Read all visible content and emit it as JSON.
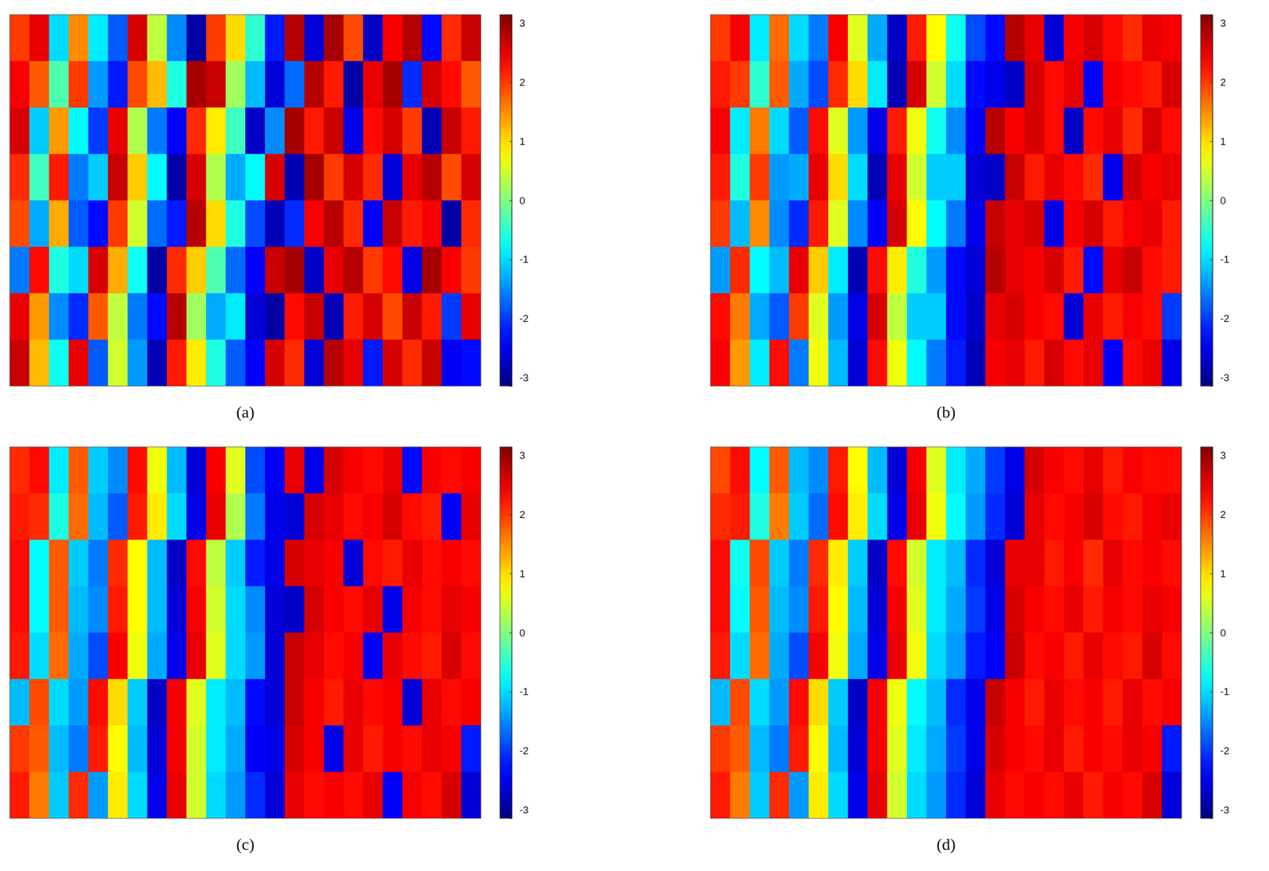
{
  "chart_data": [
    {
      "type": "heatmap",
      "title": "(a)",
      "cells": [
        [
          2.0,
          2.5,
          -1.0,
          1.5,
          -0.9,
          -1.8,
          2.6,
          0.4,
          -1.5,
          -2.9,
          2.0,
          1.0,
          -0.5,
          -2.2,
          2.8,
          -2.6,
          2.9,
          1.9,
          -2.7,
          2.4,
          2.8,
          -2.3,
          2.1,
          2.7
        ],
        [
          2.4,
          1.8,
          -0.3,
          2.0,
          -1.4,
          -2.2,
          1.9,
          1.2,
          -0.6,
          2.9,
          2.7,
          0.2,
          -1.2,
          -2.6,
          -1.7,
          2.8,
          2.2,
          -2.9,
          2.5,
          2.9,
          -2.1,
          2.6,
          2.3,
          1.8
        ],
        [
          2.6,
          -1.1,
          1.4,
          -0.8,
          -2.0,
          2.5,
          0.3,
          -1.6,
          -2.4,
          2.1,
          0.9,
          -0.4,
          -2.7,
          -1.5,
          2.9,
          2.2,
          2.7,
          -2.5,
          2.3,
          2.6,
          2.0,
          -2.8,
          2.7,
          2.2
        ],
        [
          2.1,
          -0.4,
          2.2,
          -1.6,
          -1.1,
          2.7,
          1.1,
          -0.8,
          -2.9,
          2.6,
          0.3,
          -1.3,
          -0.8,
          2.6,
          -2.8,
          2.9,
          2.0,
          2.6,
          2.1,
          -2.6,
          2.5,
          2.8,
          1.9,
          2.6
        ],
        [
          1.9,
          -1.3,
          1.3,
          -1.8,
          -2.3,
          2.0,
          0.5,
          -1.7,
          -2.2,
          2.8,
          1.0,
          -0.6,
          -1.9,
          -2.8,
          -2.1,
          2.4,
          2.8,
          2.1,
          -2.4,
          2.7,
          2.2,
          2.4,
          -2.9,
          2.1
        ],
        [
          -1.6,
          2.3,
          -0.6,
          -1.0,
          2.6,
          1.3,
          -0.7,
          -2.9,
          2.1,
          1.1,
          -0.3,
          -1.7,
          -2.4,
          2.7,
          2.9,
          -2.7,
          2.5,
          2.8,
          2.0,
          2.3,
          -2.5,
          2.9,
          2.4,
          2.0
        ],
        [
          2.5,
          1.4,
          -1.5,
          -2.1,
          1.8,
          0.4,
          -1.6,
          -2.3,
          2.8,
          0.2,
          -1.3,
          -0.9,
          -2.6,
          -2.9,
          2.3,
          2.7,
          -2.8,
          2.2,
          2.6,
          1.9,
          2.7,
          2.2,
          -2.0,
          2.5
        ],
        [
          2.7,
          1.2,
          -0.7,
          2.5,
          -1.8,
          0.5,
          -1.4,
          -2.8,
          2.2,
          0.9,
          -0.6,
          -1.8,
          -2.4,
          2.6,
          2.1,
          -2.6,
          2.8,
          2.5,
          -2.2,
          2.6,
          2.1,
          2.7,
          -2.4,
          -2.3
        ]
      ],
      "colorbar": {
        "range": [
          -3.1416,
          3.1416
        ],
        "ticks": [
          -3,
          -2,
          -1,
          0,
          1,
          2,
          3
        ]
      }
    },
    {
      "type": "heatmap",
      "title": "(b)",
      "cells": [
        [
          2.0,
          2.4,
          -0.9,
          1.7,
          -1.0,
          -1.6,
          2.4,
          0.6,
          -1.3,
          -2.7,
          2.2,
          0.8,
          -0.7,
          -1.9,
          -2.3,
          2.8,
          2.5,
          -2.6,
          2.4,
          2.6,
          2.3,
          2.1,
          2.5,
          2.4
        ],
        [
          2.2,
          2.0,
          -0.5,
          1.8,
          -1.3,
          -1.9,
          2.1,
          1.0,
          -0.9,
          -2.8,
          2.6,
          0.5,
          -1.0,
          -2.3,
          -2.5,
          -2.7,
          2.6,
          2.3,
          2.5,
          -2.4,
          2.4,
          2.3,
          2.2,
          2.6
        ],
        [
          2.4,
          -0.9,
          1.6,
          -1.0,
          -1.8,
          2.3,
          0.6,
          -1.4,
          -2.5,
          2.2,
          0.7,
          -0.7,
          -1.5,
          -2.4,
          2.8,
          2.4,
          2.6,
          2.3,
          -2.7,
          2.3,
          2.5,
          2.1,
          2.6,
          2.3
        ],
        [
          2.2,
          -0.6,
          2.0,
          -1.4,
          -1.3,
          2.5,
          1.0,
          -1.0,
          -2.8,
          2.5,
          0.5,
          -1.1,
          -1.1,
          -2.6,
          -2.7,
          2.7,
          2.2,
          2.5,
          2.3,
          2.1,
          -2.5,
          2.6,
          2.4,
          2.5
        ],
        [
          2.0,
          -1.2,
          1.5,
          -1.5,
          -2.1,
          2.2,
          0.6,
          -1.5,
          -2.4,
          2.6,
          0.8,
          -0.8,
          -1.6,
          -2.5,
          2.7,
          2.5,
          2.6,
          -2.5,
          2.4,
          2.6,
          2.2,
          2.4,
          2.5,
          2.2
        ],
        [
          -1.4,
          2.1,
          -0.8,
          -1.2,
          2.5,
          1.1,
          -0.9,
          -2.8,
          2.3,
          0.9,
          -0.6,
          -1.4,
          -2.3,
          -2.6,
          2.8,
          2.5,
          2.4,
          2.6,
          2.2,
          -2.3,
          2.5,
          2.7,
          2.3,
          2.2
        ],
        [
          2.3,
          1.6,
          -1.3,
          -1.8,
          2.0,
          0.6,
          -1.4,
          -2.5,
          2.6,
          0.4,
          -1.1,
          -1.1,
          -2.3,
          -2.7,
          2.5,
          2.6,
          2.4,
          2.3,
          -2.6,
          2.5,
          2.2,
          2.4,
          2.3,
          -2.0
        ],
        [
          2.4,
          1.4,
          -0.9,
          2.3,
          -1.6,
          0.7,
          -1.2,
          -2.6,
          2.3,
          0.7,
          -0.8,
          -1.6,
          -2.2,
          -2.8,
          2.4,
          2.5,
          2.2,
          2.6,
          2.3,
          2.5,
          -2.4,
          2.3,
          2.5,
          -2.5
        ]
      ],
      "colorbar": {
        "range": [
          -3.1416,
          3.1416
        ],
        "ticks": [
          -3,
          -2,
          -1,
          0,
          1,
          2,
          3
        ]
      }
    },
    {
      "type": "heatmap",
      "title": "(c)",
      "cells": [
        [
          2.1,
          2.3,
          -0.9,
          1.8,
          -1.1,
          -1.5,
          2.3,
          0.7,
          -1.2,
          -2.6,
          2.4,
          0.6,
          -1.9,
          -2.4,
          2.5,
          -2.5,
          2.6,
          2.4,
          2.3,
          2.5,
          -2.3,
          2.4,
          2.3,
          2.4
        ],
        [
          2.2,
          2.1,
          -0.6,
          1.7,
          -1.2,
          -1.8,
          2.2,
          0.9,
          -1.0,
          -2.5,
          2.5,
          0.3,
          -1.6,
          -2.5,
          -2.6,
          2.6,
          2.5,
          2.3,
          2.4,
          2.6,
          2.3,
          2.2,
          -2.4,
          2.5
        ],
        [
          2.3,
          -0.8,
          1.8,
          -1.1,
          -1.6,
          2.1,
          0.8,
          -1.2,
          -2.7,
          2.3,
          0.4,
          -1.1,
          -2.2,
          -2.5,
          2.6,
          2.5,
          2.4,
          -2.6,
          2.3,
          2.2,
          2.5,
          2.3,
          2.4,
          2.3
        ],
        [
          2.3,
          -0.8,
          1.8,
          -1.2,
          -1.5,
          2.2,
          0.8,
          -1.2,
          -2.6,
          2.4,
          0.5,
          -1.0,
          -1.5,
          -2.6,
          -2.7,
          2.6,
          2.4,
          2.3,
          2.5,
          -2.5,
          2.4,
          2.3,
          2.5,
          2.4
        ],
        [
          2.2,
          -1.0,
          1.7,
          -1.3,
          -1.9,
          2.4,
          0.7,
          -1.3,
          -2.5,
          2.5,
          0.6,
          -1.0,
          -1.4,
          -2.6,
          2.7,
          2.5,
          2.3,
          2.4,
          -2.4,
          2.5,
          2.3,
          2.2,
          2.6,
          2.3
        ],
        [
          -1.2,
          1.9,
          -1.0,
          -1.4,
          2.3,
          1.0,
          -1.1,
          -2.7,
          2.4,
          0.6,
          -0.9,
          -1.2,
          -2.3,
          -2.6,
          2.7,
          2.4,
          2.2,
          2.5,
          2.3,
          2.4,
          -2.6,
          2.5,
          2.3,
          2.4
        ],
        [
          2.0,
          1.8,
          -1.2,
          -1.6,
          2.2,
          0.8,
          -1.2,
          -2.6,
          2.4,
          0.5,
          -0.9,
          -1.3,
          -2.4,
          -2.5,
          2.6,
          2.4,
          -2.5,
          2.5,
          2.2,
          2.4,
          2.3,
          2.5,
          2.4,
          -2.2
        ],
        [
          2.2,
          1.6,
          -1.1,
          2.1,
          -1.4,
          0.9,
          -1.0,
          -2.5,
          2.5,
          0.5,
          -1.0,
          -1.4,
          -2.1,
          -2.6,
          2.5,
          2.3,
          2.4,
          2.3,
          2.5,
          -2.4,
          2.4,
          2.3,
          2.6,
          -2.6
        ]
      ],
      "colorbar": {
        "range": [
          -3.1416,
          3.1416
        ],
        "ticks": [
          -3,
          -2,
          -1,
          0,
          1,
          2,
          3
        ]
      }
    },
    {
      "type": "heatmap",
      "title": "(d)",
      "cells": [
        [
          1.9,
          2.3,
          -0.8,
          1.8,
          -1.2,
          -1.5,
          2.2,
          0.8,
          -1.2,
          -2.6,
          2.4,
          0.6,
          -0.9,
          -1.3,
          -2.0,
          -2.5,
          2.6,
          2.4,
          2.3,
          2.5,
          2.2,
          2.4,
          2.3,
          2.3
        ],
        [
          2.1,
          2.2,
          -0.6,
          1.6,
          -1.1,
          -1.7,
          2.3,
          0.9,
          -1.0,
          -2.5,
          2.5,
          0.7,
          -0.8,
          -1.4,
          -2.1,
          -2.6,
          2.5,
          2.3,
          2.4,
          2.6,
          2.3,
          2.2,
          2.4,
          2.5
        ],
        [
          2.3,
          -0.7,
          1.9,
          -1.1,
          -1.6,
          2.1,
          0.9,
          -1.1,
          -2.7,
          2.3,
          0.5,
          -0.9,
          -1.2,
          -2.1,
          -2.6,
          2.5,
          2.5,
          2.2,
          2.4,
          2.1,
          2.5,
          2.3,
          2.4,
          2.3
        ],
        [
          2.3,
          -0.8,
          1.8,
          -1.2,
          -1.5,
          2.2,
          0.8,
          -1.2,
          -2.6,
          2.4,
          0.6,
          -0.9,
          -1.3,
          -2.0,
          -2.5,
          2.6,
          2.4,
          2.3,
          2.5,
          2.2,
          2.4,
          2.3,
          2.5,
          2.4
        ],
        [
          2.2,
          -1.0,
          1.7,
          -1.3,
          -1.9,
          2.4,
          0.7,
          -1.3,
          -2.5,
          2.5,
          0.7,
          -1.0,
          -1.4,
          -2.2,
          -2.4,
          2.7,
          2.3,
          2.4,
          2.2,
          2.5,
          2.3,
          2.2,
          2.6,
          2.3
        ],
        [
          -1.2,
          1.9,
          -1.0,
          -1.4,
          2.3,
          1.0,
          -1.1,
          -2.7,
          2.4,
          0.7,
          -0.8,
          -1.2,
          -2.1,
          -2.5,
          2.7,
          2.4,
          2.2,
          2.5,
          2.3,
          2.4,
          2.2,
          2.5,
          2.3,
          2.4
        ],
        [
          2.0,
          1.8,
          -1.2,
          -1.6,
          2.2,
          0.8,
          -1.2,
          -2.6,
          2.4,
          0.6,
          -0.9,
          -1.3,
          -2.0,
          -2.5,
          2.6,
          2.4,
          2.3,
          2.5,
          2.2,
          2.4,
          2.3,
          2.5,
          2.4,
          -2.2
        ],
        [
          2.2,
          1.6,
          -1.1,
          2.1,
          -1.4,
          0.9,
          -1.0,
          -2.5,
          2.5,
          0.5,
          -1.0,
          -1.4,
          -2.1,
          -2.6,
          2.5,
          2.3,
          2.4,
          2.3,
          2.5,
          2.2,
          2.4,
          2.3,
          2.6,
          -2.6
        ]
      ],
      "colorbar": {
        "range": [
          -3.1416,
          3.1416
        ],
        "ticks": [
          -3,
          -2,
          -1,
          0,
          1,
          2,
          3
        ]
      }
    }
  ]
}
